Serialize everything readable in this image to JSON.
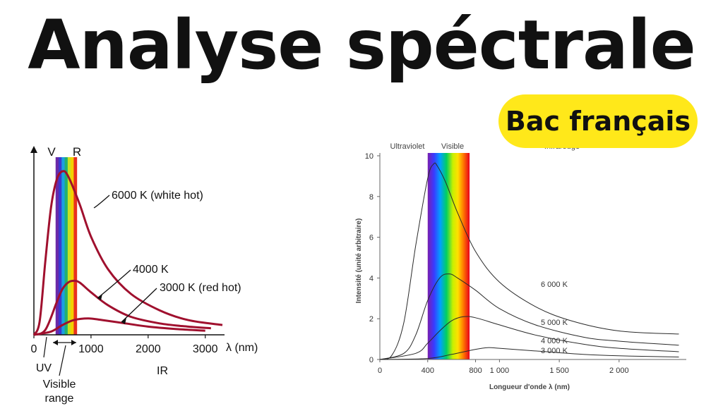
{
  "page": {
    "title": "Analyse spéctrale",
    "badge": "Bac français"
  },
  "chart_data": [
    {
      "type": "line",
      "xlabel": "λ (nm)",
      "x_ticks": [
        0,
        1000,
        2000,
        3000
      ],
      "xlim": [
        0,
        3300
      ],
      "ylim": [
        0,
        1
      ],
      "band_labels": {
        "violet": "V",
        "red": "R",
        "uv": "UV",
        "visible": "Visible range",
        "ir": "IR"
      },
      "series": [
        {
          "name": "6000 K (white hot)",
          "peak_x": 500,
          "x": [
            0,
            100,
            200,
            300,
            400,
            500,
            600,
            800,
            1000,
            1300,
            1700,
            2200,
            2700,
            3300
          ],
          "values": [
            0,
            0.08,
            0.45,
            0.78,
            0.95,
            1.0,
            0.97,
            0.8,
            0.6,
            0.4,
            0.25,
            0.15,
            0.09,
            0.06
          ]
        },
        {
          "name": "4000 K",
          "peak_x": 700,
          "x": [
            0,
            200,
            400,
            500,
            600,
            700,
            800,
            1000,
            1300,
            1700,
            2200,
            2700,
            3100
          ],
          "values": [
            0,
            0.03,
            0.2,
            0.28,
            0.32,
            0.33,
            0.32,
            0.26,
            0.18,
            0.11,
            0.07,
            0.05,
            0.04
          ]
        },
        {
          "name": "3000 K (red hot)",
          "peak_x": 950,
          "x": [
            0,
            300,
            500,
            700,
            950,
            1200,
            1600,
            2000,
            2500,
            3000
          ],
          "values": [
            0,
            0.02,
            0.06,
            0.09,
            0.1,
            0.09,
            0.07,
            0.05,
            0.035,
            0.025
          ]
        }
      ]
    },
    {
      "type": "line",
      "xlabel": "Longueur d'onde λ (nm)",
      "ylabel": "Intensité (unité arbitraire)",
      "x_ticks": [
        0,
        400,
        800,
        1000,
        1500,
        2000
      ],
      "x_tick_labels": [
        "0",
        "400",
        "800",
        "1 000",
        "1 500",
        "2 000"
      ],
      "y_ticks": [
        0,
        2,
        4,
        6,
        8,
        10
      ],
      "xlim": [
        0,
        2550
      ],
      "ylim": [
        0,
        10
      ],
      "region_labels": [
        "Ultraviolet",
        "Visible",
        "Infrarouge"
      ],
      "visible_band_nm": [
        400,
        750
      ],
      "series": [
        {
          "name": "6 000 K",
          "x": [
            0,
            100,
            200,
            300,
            400,
            450,
            480,
            550,
            650,
            800,
            1000,
            1300,
            1600,
            2000,
            2500
          ],
          "values": [
            0,
            0.2,
            1.8,
            5.6,
            8.9,
            9.6,
            9.5,
            8.7,
            7.2,
            5.3,
            3.8,
            2.6,
            1.9,
            1.4,
            1.25
          ]
        },
        {
          "name": "5 000 K",
          "x": [
            0,
            200,
            300,
            400,
            500,
            580,
            650,
            800,
            1000,
            1300,
            1700,
            2000,
            2500
          ],
          "values": [
            0,
            0.3,
            1.2,
            2.9,
            4.0,
            4.2,
            4.0,
            3.4,
            2.5,
            1.7,
            1.1,
            0.9,
            0.7
          ]
        },
        {
          "name": "4 000 K",
          "x": [
            0,
            300,
            400,
            500,
            600,
            700,
            800,
            1000,
            1300,
            1700,
            2000,
            2500
          ],
          "values": [
            0,
            0.3,
            0.8,
            1.4,
            1.9,
            2.1,
            2.05,
            1.7,
            1.2,
            0.75,
            0.55,
            0.38
          ]
        },
        {
          "name": "3 000 K",
          "x": [
            0,
            400,
            600,
            800,
            900,
            1000,
            1300,
            1700,
            2000,
            2500
          ],
          "values": [
            0,
            0.05,
            0.25,
            0.5,
            0.58,
            0.55,
            0.42,
            0.25,
            0.18,
            0.12
          ]
        }
      ]
    }
  ]
}
